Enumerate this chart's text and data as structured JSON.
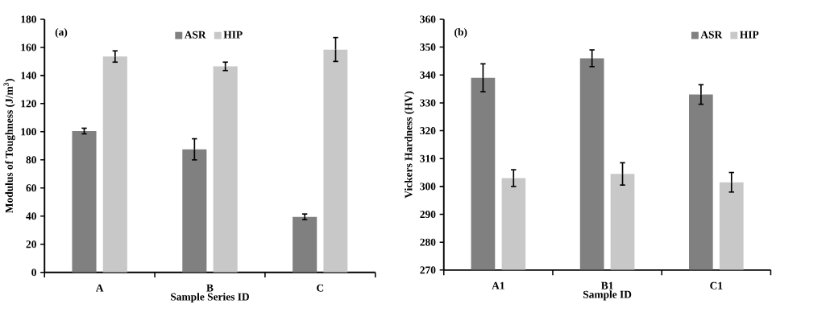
{
  "chart_data": [
    {
      "type": "bar",
      "categories": [
        "A",
        "B",
        "C"
      ],
      "xlabel": "Sample Series ID",
      "ylabel": "Modulus of Toughness (J/m$^{3}$)",
      "annotations": [
        "(a)"
      ],
      "legend": "top",
      "ylim": [
        0,
        180
      ],
      "yticks": [
        0,
        20,
        40,
        60,
        80,
        100,
        120,
        140,
        160,
        180
      ],
      "series": [
        {
          "name": "ASR",
          "color": "#808080",
          "values": [
            100.5,
            87.5,
            39.5
          ],
          "errors": [
            2,
            7.5,
            2
          ]
        },
        {
          "name": "HIP",
          "color": "#c8c8c8",
          "values": [
            153.5,
            146.5,
            158.5
          ],
          "errors": [
            4,
            3,
            8.5
          ]
        }
      ]
    },
    {
      "type": "bar",
      "categories": [
        "A1",
        "B1",
        "C1"
      ],
      "xlabel": "Sample ID",
      "ylabel": "Vickers Hardness (HV)",
      "annotations": [
        "(b)"
      ],
      "legend": "top right",
      "ylim": [
        270,
        360
      ],
      "yticks": [
        270,
        280,
        290,
        300,
        310,
        320,
        330,
        340,
        350,
        360
      ],
      "series": [
        {
          "name": "ASR",
          "color": "#808080",
          "values": [
            339,
            346,
            333
          ],
          "errors": [
            5,
            3,
            3.5
          ]
        },
        {
          "name": "HIP",
          "color": "#c8c8c8",
          "values": [
            303,
            304.5,
            301.5
          ],
          "errors": [
            3,
            4,
            3.5
          ]
        }
      ]
    }
  ]
}
